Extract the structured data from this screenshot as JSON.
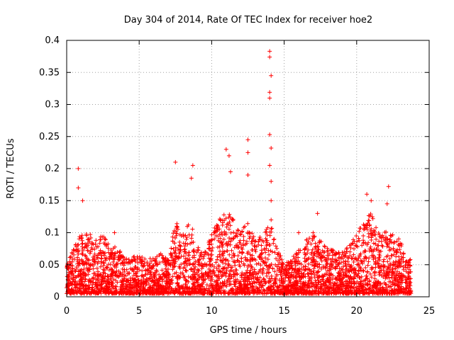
{
  "chart_data": {
    "type": "scatter",
    "title": "Day 304 of 2014, Rate Of TEC Index for receiver hoe2",
    "xlabel": "GPS time / hours",
    "ylabel": "ROTI / TECUs",
    "xlim": [
      0,
      25
    ],
    "ylim": [
      0,
      0.4
    ],
    "xticks": [
      "0",
      "5",
      "10",
      "15",
      "20",
      "25"
    ],
    "yticks": [
      "0",
      "0.05",
      "0.1",
      "0.15",
      "0.2",
      "0.25",
      "0.3",
      "0.35",
      "0.4"
    ],
    "grid": true,
    "marker": "+",
    "color": "#ff0000",
    "notable_points": [
      {
        "x": 0.8,
        "y": 0.2
      },
      {
        "x": 0.8,
        "y": 0.17
      },
      {
        "x": 7.5,
        "y": 0.21
      },
      {
        "x": 8.7,
        "y": 0.205
      },
      {
        "x": 8.6,
        "y": 0.185
      },
      {
        "x": 11.0,
        "y": 0.23
      },
      {
        "x": 11.2,
        "y": 0.22
      },
      {
        "x": 11.3,
        "y": 0.195
      },
      {
        "x": 12.5,
        "y": 0.245
      },
      {
        "x": 12.5,
        "y": 0.225
      },
      {
        "x": 12.5,
        "y": 0.19
      },
      {
        "x": 14.0,
        "y": 0.383
      },
      {
        "x": 14.0,
        "y": 0.374
      },
      {
        "x": 14.1,
        "y": 0.345
      },
      {
        "x": 14.0,
        "y": 0.319
      },
      {
        "x": 14.0,
        "y": 0.31
      },
      {
        "x": 14.0,
        "y": 0.253
      },
      {
        "x": 14.1,
        "y": 0.232
      },
      {
        "x": 14.0,
        "y": 0.205
      },
      {
        "x": 14.1,
        "y": 0.18
      },
      {
        "x": 14.1,
        "y": 0.15
      },
      {
        "x": 14.1,
        "y": 0.12
      },
      {
        "x": 20.7,
        "y": 0.16
      },
      {
        "x": 21.0,
        "y": 0.15
      },
      {
        "x": 22.2,
        "y": 0.172
      },
      {
        "x": 22.1,
        "y": 0.145
      },
      {
        "x": 17.3,
        "y": 0.13
      },
      {
        "x": 16.0,
        "y": 0.1
      },
      {
        "x": 3.3,
        "y": 0.1
      },
      {
        "x": 1.1,
        "y": 0.15
      }
    ],
    "activity_envelope": [
      {
        "x": 0.0,
        "y": 0.05
      },
      {
        "x": 0.5,
        "y": 0.08
      },
      {
        "x": 1.0,
        "y": 0.1
      },
      {
        "x": 1.5,
        "y": 0.1
      },
      {
        "x": 2.0,
        "y": 0.09
      },
      {
        "x": 2.5,
        "y": 0.1
      },
      {
        "x": 3.0,
        "y": 0.08
      },
      {
        "x": 3.5,
        "y": 0.08
      },
      {
        "x": 4.0,
        "y": 0.06
      },
      {
        "x": 4.5,
        "y": 0.06
      },
      {
        "x": 5.0,
        "y": 0.07
      },
      {
        "x": 5.5,
        "y": 0.06
      },
      {
        "x": 6.0,
        "y": 0.06
      },
      {
        "x": 6.5,
        "y": 0.07
      },
      {
        "x": 7.0,
        "y": 0.06
      },
      {
        "x": 7.5,
        "y": 0.12
      },
      {
        "x": 8.0,
        "y": 0.1
      },
      {
        "x": 8.5,
        "y": 0.12
      },
      {
        "x": 9.0,
        "y": 0.08
      },
      {
        "x": 9.5,
        "y": 0.07
      },
      {
        "x": 10.0,
        "y": 0.1
      },
      {
        "x": 10.5,
        "y": 0.12
      },
      {
        "x": 11.0,
        "y": 0.14
      },
      {
        "x": 11.5,
        "y": 0.12
      },
      {
        "x": 12.0,
        "y": 0.1
      },
      {
        "x": 12.5,
        "y": 0.12
      },
      {
        "x": 13.0,
        "y": 0.09
      },
      {
        "x": 13.5,
        "y": 0.1
      },
      {
        "x": 14.0,
        "y": 0.12
      },
      {
        "x": 14.5,
        "y": 0.08
      },
      {
        "x": 15.0,
        "y": 0.05
      },
      {
        "x": 15.5,
        "y": 0.06
      },
      {
        "x": 16.0,
        "y": 0.08
      },
      {
        "x": 16.5,
        "y": 0.09
      },
      {
        "x": 17.0,
        "y": 0.1
      },
      {
        "x": 17.5,
        "y": 0.09
      },
      {
        "x": 18.0,
        "y": 0.08
      },
      {
        "x": 18.5,
        "y": 0.07
      },
      {
        "x": 19.0,
        "y": 0.07
      },
      {
        "x": 19.5,
        "y": 0.08
      },
      {
        "x": 20.0,
        "y": 0.1
      },
      {
        "x": 20.5,
        "y": 0.12
      },
      {
        "x": 21.0,
        "y": 0.13
      },
      {
        "x": 21.5,
        "y": 0.1
      },
      {
        "x": 22.0,
        "y": 0.11
      },
      {
        "x": 22.5,
        "y": 0.1
      },
      {
        "x": 23.0,
        "y": 0.09
      },
      {
        "x": 23.5,
        "y": 0.06
      }
    ],
    "baseline_min": 0.005,
    "x_end": 23.75,
    "point_density_per_hour": 160
  }
}
